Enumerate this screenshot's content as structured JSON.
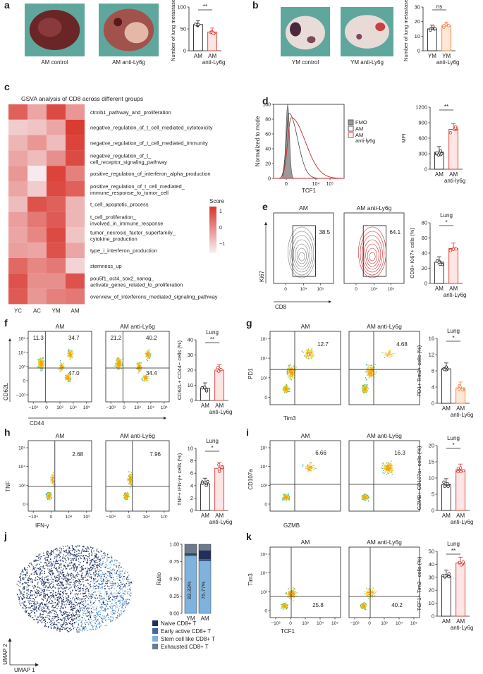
{
  "panel_letters": [
    "a",
    "b",
    "c",
    "d",
    "e",
    "f",
    "g",
    "h",
    "i",
    "j",
    "k"
  ],
  "colors": {
    "red": "#d8342b",
    "red_fill": "#fde6e4",
    "orange": "#ef7e3a",
    "orange_fill": "#fde8d8",
    "blue": "#6fa8d6",
    "black": "#222222"
  },
  "panel_a": {
    "photo_labels": [
      "AM control",
      "AM anti-Ly6g"
    ],
    "ylabel": "Number of lung metastases",
    "groups": [
      "AM",
      "AM anti-Ly6g"
    ],
    "sig": "**",
    "chart_data": {
      "type": "bar",
      "categories": [
        "AM",
        "AM anti-Ly6g"
      ],
      "values": [
        60,
        43
      ],
      "ylim": [
        0,
        100
      ],
      "yticks": [
        "0",
        "50",
        "100"
      ],
      "ylabel": "Number of lung metastases"
    }
  },
  "panel_b": {
    "photo_labels": [
      "YM control",
      "YM anti-Ly6g"
    ],
    "ylabel": "Number of lung metastases",
    "groups": [
      "YM",
      "YM anti-Ly6g"
    ],
    "sig": "ns",
    "chart_data": {
      "type": "bar",
      "categories": [
        "YM",
        "YM anti-Ly6g"
      ],
      "values": [
        15,
        17
      ],
      "ylim": [
        0,
        30
      ],
      "yticks": [
        "0",
        "10",
        "20",
        "30"
      ],
      "ylabel": "Number of lung metastases"
    }
  },
  "panel_c": {
    "title": "GSVA analysis of CD8 across different groups",
    "legend_title": "Score",
    "chart_data": {
      "type": "heatmap",
      "columns": [
        "YC",
        "AC",
        "YM",
        "AM"
      ],
      "rows": [
        "ctnnb1_pathway_and_proliferation",
        "negative_regulation_of_t_cell_mediated_cytotoxicity",
        "negative_regulation_of_t_cell_mediated_immunity",
        "negative_regulation_of_t_ cell_receptor_signaling_pathway",
        "positive_regulation_of_interferon_alpha_production",
        "positive_regulation_of_t_cell_mediated_ immune_response_to_tumor_cell",
        "t_cell_apoptotic_process",
        "t_cell_proliferation_ involved_in_immune_response",
        "tumor_necrosis_factor_superfamily_ cytokine_production",
        "type_i_interferon_production",
        "stemness_up",
        "pou5f1_oct4_sox2_nanog_ activate_genes_related_to_proliferation",
        "overview_of_interferons_mediated_signaling_pathway"
      ],
      "values": [
        [
          0.9,
          0.0,
          1.2,
          0.2
        ],
        [
          -0.5,
          -0.4,
          0.0,
          1.4
        ],
        [
          -0.2,
          0.2,
          -0.3,
          1.3
        ],
        [
          0.0,
          -0.3,
          0.3,
          1.2
        ],
        [
          0.2,
          -0.9,
          1.3,
          0.5
        ],
        [
          0.0,
          -0.5,
          1.2,
          0.9
        ],
        [
          -0.3,
          1.1,
          0.9,
          -0.2
        ],
        [
          0.1,
          0.6,
          1.0,
          -0.2
        ],
        [
          0.0,
          0.4,
          1.2,
          -0.4
        ],
        [
          0.1,
          0.0,
          1.1,
          0.0
        ],
        [
          0.8,
          0.4,
          0.6,
          -0.6
        ],
        [
          1.1,
          0.3,
          0.3,
          1.1
        ],
        [
          1.0,
          0.2,
          0.5,
          0.6
        ]
      ],
      "scale": {
        "min": -1,
        "max": 1,
        "ticks": [
          "1",
          "0",
          "−1"
        ]
      }
    }
  },
  "panel_d": {
    "ylabel": "Normalized to mode",
    "xlabel": "TCF1",
    "legend": [
      "FMO",
      "AM",
      "AM anti-ly6g"
    ],
    "yticks": [
      "100",
      "80",
      "60",
      "40",
      "20",
      "0"
    ],
    "xticks": [
      "0",
      "10⁴",
      "10⁵"
    ],
    "bar_ylabel": "MFI",
    "sig": "**",
    "groups": [
      "AM",
      "AM anti-ly6g"
    ],
    "chart_data": {
      "type": "bar",
      "categories": [
        "AM",
        "AM anti-ly6g"
      ],
      "values": [
        330,
        770
      ],
      "ylim": [
        0,
        1200
      ],
      "yticks": [
        "0",
        "300",
        "600",
        "900",
        "1200"
      ],
      "ylabel": "MFI"
    }
  },
  "panel_e": {
    "plot_titles": [
      "AM",
      "AM anti-Ly6g"
    ],
    "gate_values": [
      "38.5",
      "64.1"
    ],
    "ylabel": "Ki67",
    "xlabel": "CD8",
    "xticks": [
      "0",
      "10⁴",
      "10⁵"
    ],
    "bar_title": "Lung",
    "bar_ylabel": "CD8+ Ki67+ cells (%)",
    "sig": "*",
    "groups": [
      "AM",
      "AM anti-Ly6g"
    ],
    "chart_data": {
      "type": "bar",
      "categories": [
        "AM",
        "AM anti-Ly6g"
      ],
      "values": [
        28,
        46
      ],
      "ylim": [
        0,
        80
      ],
      "yticks": [
        "0",
        "20",
        "40",
        "60",
        "80"
      ],
      "ylabel": "CD8+ Ki67+ cells (%)"
    }
  },
  "panel_f": {
    "plot_titles": [
      "AM",
      "AM anti-Ly6g"
    ],
    "quad_values": [
      [
        "11.3",
        "34.7",
        "47.0"
      ],
      [
        "21.2",
        "40.2",
        "34.4"
      ]
    ],
    "ylabel": "CD62L",
    "xlabel": "CD44",
    "yticks": [
      "10⁵",
      "10⁴",
      "10³",
      "0",
      "−10³"
    ],
    "xticks": [
      "−10³",
      "0",
      "10³",
      "10⁴",
      "10⁵"
    ],
    "bar_title": "Lung",
    "bar_ylabel": "CD62L+ CD44− cells (%)",
    "sig": "**",
    "groups": [
      "AM",
      "AM anti-Ly6g"
    ],
    "chart_data": {
      "type": "bar",
      "categories": [
        "AM",
        "AM anti-Ly6g"
      ],
      "values": [
        8,
        20
      ],
      "ylim": [
        0,
        40
      ],
      "yticks": [
        "0",
        "10",
        "20",
        "30",
        "40"
      ],
      "ylabel": "CD62L+ CD44− cells (%)"
    }
  },
  "panel_g": {
    "plot_titles": [
      "AM",
      "AM anti-Ly6g"
    ],
    "quad_values": [
      "12.7",
      "4.68"
    ],
    "ylabel": "PD1",
    "xlabel": "Tim3",
    "yticks": [
      "10⁵",
      "10⁴",
      "10³",
      "0"
    ],
    "xticks": [
      "0",
      "10⁴",
      "10⁵"
    ],
    "bar_title": "Lung",
    "bar_ylabel": "PD1+ Tim3+ cells (%)",
    "sig": "*",
    "groups": [
      "AM",
      "AM anti-Ly6g"
    ],
    "chart_data": {
      "type": "bar",
      "categories": [
        "AM",
        "AM anti-Ly6g"
      ],
      "values": [
        8.5,
        3.8
      ],
      "ylim": [
        0,
        16
      ],
      "yticks": [
        "0",
        "4",
        "8",
        "12",
        "16"
      ],
      "ylabel": "PD1+ Tim3+ cells (%)"
    }
  },
  "panel_h": {
    "plot_titles": [
      "AM",
      "AM anti-Ly6g"
    ],
    "quad_values": [
      "2.68",
      "7.96"
    ],
    "ylabel": "TNF",
    "xlabel": "IFN-γ",
    "yticks": [
      "10⁵",
      "10⁴",
      "10³",
      "0"
    ],
    "xticks": [
      "−10⁴",
      "0",
      "10⁴",
      "10⁵"
    ],
    "bar_title": "Lung",
    "bar_ylabel": "TNF+ IFN-γ+ cells (%)",
    "sig": "*",
    "groups": [
      "AM",
      "AM anti-Ly6g"
    ],
    "chart_data": {
      "type": "bar",
      "categories": [
        "AM",
        "AM anti-Ly6g"
      ],
      "values": [
        4.3,
        6.8
      ],
      "ylim": [
        0,
        10
      ],
      "yticks": [
        "0",
        "2",
        "4",
        "6",
        "8",
        "10"
      ],
      "ylabel": "TNF+ IFN-γ+ cells (%)"
    }
  },
  "panel_i": {
    "plot_titles": [
      "AM",
      "AM anti-Ly6g"
    ],
    "quad_values": [
      "6.66",
      "16.3"
    ],
    "ylabel": "CD107a",
    "xlabel": "GZMB",
    "yticks": [
      "10⁵",
      "10⁴",
      "10³",
      "0"
    ],
    "xticks": [
      "0",
      "10⁴",
      "10⁵"
    ],
    "bar_title": "Lung",
    "bar_ylabel": "GZMB+ CD107a+ cells (%)",
    "sig": "*",
    "groups": [
      "AM",
      "AM anti-Ly6g"
    ],
    "chart_data": {
      "type": "bar",
      "categories": [
        "AM",
        "AM anti-Ly6g"
      ],
      "values": [
        8,
        12.5
      ],
      "ylim": [
        0,
        20
      ],
      "yticks": [
        "0",
        "5",
        "10",
        "15",
        "20"
      ],
      "ylabel": "GZMB+ CD107a+ cells (%)"
    }
  },
  "panel_j": {
    "umap_xlabel": "UMAP 1",
    "umap_ylabel": "UMAP 2",
    "legend": [
      "Naive CD8+ T",
      "Early active CD8+ T",
      "Stem cell like CD8+ T",
      "Exhausted CD8+ T"
    ],
    "legend_colors": [
      "#1f2f5e",
      "#3f6aa8",
      "#7fb3de",
      "#6b7a8c"
    ],
    "chart_data": {
      "type": "bar",
      "stacked": true,
      "categories": [
        "YM",
        "AM"
      ],
      "ylabel": "Ratio",
      "yticks": [
        "0.00",
        "0.25",
        "0.50",
        "0.75",
        "1.00"
      ],
      "series": [
        {
          "name": "Stem cell like CD8+ T",
          "values": [
            0.8333,
            0.7577
          ]
        },
        {
          "name": "Early active CD8+ T",
          "values": [
            0.02,
            0.03
          ]
        },
        {
          "name": "Naive CD8+ T",
          "values": [
            0.01,
            0.12
          ]
        },
        {
          "name": "Exhausted CD8+ T",
          "values": [
            0.1367,
            0.092
          ]
        }
      ],
      "labels": [
        "83.33%",
        "75.77%"
      ]
    }
  },
  "panel_k": {
    "plot_titles": [
      "AM",
      "AM anti-Ly6g"
    ],
    "quad_values": [
      "25.8",
      "40.2"
    ],
    "ylabel": "Tim3",
    "xlabel": "TCF1",
    "yticks": [
      "10⁵",
      "10⁴",
      "10³",
      "0"
    ],
    "xticks": [
      "−10³",
      "0",
      "10³",
      "10⁴",
      "10⁵"
    ],
    "bar_title": "Lung",
    "bar_ylabel": "TCF1+ Tim3− cells (%)",
    "sig": "**",
    "groups": [
      "AM",
      "AM anti-Ly6g"
    ],
    "chart_data": {
      "type": "bar",
      "categories": [
        "AM",
        "AM anti-Ly6g"
      ],
      "values": [
        31,
        41
      ],
      "ylim": [
        0,
        50
      ],
      "yticks": [
        "0",
        "10",
        "20",
        "30",
        "40",
        "50"
      ],
      "ylabel": "TCF1+ Tim3− cells (%)"
    }
  }
}
